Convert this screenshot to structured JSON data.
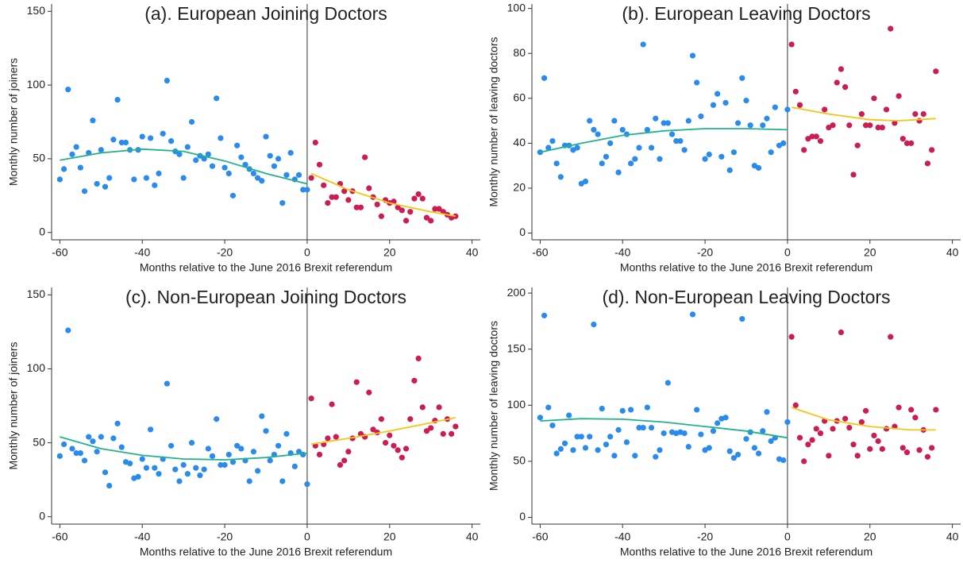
{
  "chart_data": [
    {
      "type": "scatter",
      "title": "(a). European Joining Doctors",
      "xlabel": "Months relative to the June 2016 Brexit referendum",
      "ylabel": "Monthly number of joiners",
      "xlim": [
        -62,
        42
      ],
      "ylim": [
        -5,
        155
      ],
      "xticks": [
        -60,
        -40,
        -20,
        0,
        20,
        40
      ],
      "yticks": [
        0,
        50,
        100,
        150
      ],
      "vline": 0,
      "series": [
        {
          "style": "points",
          "color": "#2a8bee",
          "x": [
            -60,
            -59,
            -58,
            -57,
            -56,
            -55,
            -54,
            -53,
            -52,
            -51,
            -50,
            -49,
            -48,
            -47,
            -46,
            -45,
            -44,
            -43,
            -42,
            -41,
            -40,
            -39,
            -38,
            -37,
            -36,
            -35,
            -34,
            -33,
            -32,
            -31,
            -30,
            -29,
            -28,
            -27,
            -26,
            -25,
            -24,
            -23,
            -22,
            -21,
            -20,
            -19,
            -18,
            -17,
            -16,
            -15,
            -14,
            -13,
            -12,
            -11,
            -10,
            -9,
            -8,
            -7,
            -6,
            -5,
            -4,
            -3,
            -2,
            -1,
            0
          ],
          "values": [
            36,
            43,
            97,
            53,
            58,
            44,
            28,
            54,
            76,
            33,
            56,
            31,
            37,
            63,
            90,
            61,
            61,
            56,
            36,
            56,
            65,
            37,
            64,
            32,
            40,
            67,
            103,
            62,
            55,
            53,
            37,
            58,
            75,
            49,
            52,
            50,
            53,
            45,
            91,
            64,
            44,
            40,
            25,
            59,
            51,
            46,
            43,
            40,
            37,
            35,
            65,
            52,
            45,
            50,
            20,
            39,
            54,
            36,
            39,
            29,
            29
          ]
        },
        {
          "style": "points",
          "color": "#cc1c52",
          "x": [
            1,
            2,
            3,
            4,
            5,
            6,
            7,
            8,
            9,
            10,
            11,
            12,
            13,
            14,
            15,
            16,
            17,
            18,
            19,
            20,
            21,
            22,
            23,
            24,
            25,
            26,
            27,
            28,
            29,
            30,
            31,
            32,
            33,
            34,
            35,
            36
          ],
          "values": [
            37,
            61,
            46,
            32,
            20,
            24,
            24,
            33,
            28,
            22,
            28,
            17,
            17,
            51,
            30,
            24,
            19,
            11,
            22,
            20,
            21,
            17,
            15,
            8,
            14,
            23,
            26,
            23,
            10,
            8,
            16,
            16,
            14,
            12,
            10,
            11
          ]
        },
        {
          "style": "line",
          "color": "#22b38a",
          "x": [
            -60,
            -50,
            -40,
            -30,
            -20,
            -10,
            0
          ],
          "values": [
            49,
            54,
            56.5,
            55,
            48.5,
            40,
            33
          ]
        },
        {
          "style": "line",
          "color": "#f5c518",
          "x": [
            1,
            10,
            20,
            30,
            36
          ],
          "values": [
            40,
            29,
            20,
            14,
            11
          ]
        }
      ]
    },
    {
      "type": "scatter",
      "title": "(b). European Leaving Doctors",
      "xlabel": "Months relative to the June 2016 Brexit referendum",
      "ylabel": "Monthly number of leaving doctors",
      "xlim": [
        -62,
        42
      ],
      "ylim": [
        -3,
        102
      ],
      "xticks": [
        -60,
        -40,
        -20,
        0,
        20,
        40
      ],
      "yticks": [
        0,
        20,
        40,
        60,
        80,
        100
      ],
      "vline": 0,
      "series": [
        {
          "style": "points",
          "color": "#2a8bee",
          "x": [
            -60,
            -59,
            -58,
            -57,
            -56,
            -55,
            -54,
            -53,
            -52,
            -51,
            -50,
            -49,
            -48,
            -47,
            -46,
            -45,
            -44,
            -43,
            -42,
            -41,
            -40,
            -39,
            -38,
            -37,
            -36,
            -35,
            -34,
            -33,
            -32,
            -31,
            -30,
            -29,
            -28,
            -27,
            -26,
            -25,
            -24,
            -23,
            -22,
            -21,
            -20,
            -19,
            -18,
            -17,
            -16,
            -15,
            -14,
            -13,
            -12,
            -11,
            -10,
            -9,
            -8,
            -7,
            -6,
            -5,
            -4,
            -3,
            -2,
            -1,
            0
          ],
          "values": [
            36,
            69,
            38,
            41,
            31,
            25,
            39,
            39,
            37,
            38,
            22,
            23,
            50,
            46,
            44,
            31,
            34,
            40,
            50,
            27,
            46,
            44,
            31,
            33,
            38,
            84,
            46,
            38,
            51,
            33,
            49,
            49,
            44,
            41,
            41,
            37,
            50,
            79,
            67,
            52,
            33,
            35,
            57,
            62,
            34,
            58,
            28,
            36,
            49,
            69,
            59,
            48,
            30,
            29,
            48,
            51,
            36,
            56,
            39,
            40,
            55
          ]
        },
        {
          "style": "points",
          "color": "#cc1c52",
          "x": [
            1,
            2,
            3,
            4,
            5,
            6,
            7,
            8,
            9,
            10,
            11,
            12,
            13,
            14,
            15,
            16,
            17,
            18,
            19,
            20,
            21,
            22,
            23,
            24,
            25,
            26,
            27,
            28,
            29,
            30,
            31,
            32,
            33,
            34,
            35,
            36
          ],
          "values": [
            84,
            63,
            57,
            37,
            42,
            43,
            43,
            41,
            55,
            47,
            48,
            67,
            73,
            65,
            48,
            26,
            39,
            53,
            48,
            48,
            60,
            47,
            47,
            55,
            91,
            49,
            61,
            42,
            40,
            40,
            53,
            50,
            53,
            31,
            37,
            72
          ]
        },
        {
          "style": "line",
          "color": "#22b38a",
          "x": [
            -60,
            -50,
            -40,
            -30,
            -20,
            -10,
            0
          ],
          "values": [
            36,
            40,
            43.5,
            45.5,
            46.5,
            46.5,
            46
          ]
        },
        {
          "style": "line",
          "color": "#f5c518",
          "x": [
            1,
            10,
            20,
            27,
            36
          ],
          "values": [
            56,
            53,
            50.5,
            50,
            51
          ]
        }
      ]
    },
    {
      "type": "scatter",
      "title": "(c). Non-European Joining Doctors",
      "xlabel": "Months relative to the June 2016 Brexit referendum",
      "ylabel": "Monthly number of joiners",
      "xlim": [
        -62,
        42
      ],
      "ylim": [
        -5,
        155
      ],
      "xticks": [
        -60,
        -40,
        -20,
        0,
        20,
        40
      ],
      "yticks": [
        0,
        50,
        100,
        150
      ],
      "vline": 0,
      "series": [
        {
          "style": "points",
          "color": "#2a8bee",
          "x": [
            -60,
            -59,
            -58,
            -57,
            -56,
            -55,
            -54,
            -53,
            -52,
            -51,
            -50,
            -49,
            -48,
            -47,
            -46,
            -45,
            -44,
            -43,
            -42,
            -41,
            -40,
            -39,
            -38,
            -37,
            -36,
            -35,
            -34,
            -33,
            -32,
            -31,
            -30,
            -29,
            -28,
            -27,
            -26,
            -25,
            -24,
            -23,
            -22,
            -21,
            -20,
            -19,
            -18,
            -17,
            -16,
            -15,
            -14,
            -13,
            -12,
            -11,
            -10,
            -9,
            -8,
            -7,
            -6,
            -5,
            -4,
            -3,
            -2,
            -1,
            0
          ],
          "values": [
            41,
            49,
            126,
            46,
            43,
            43,
            38,
            54,
            51,
            44,
            54,
            30,
            21,
            53,
            63,
            47,
            37,
            36,
            26,
            27,
            39,
            33,
            59,
            33,
            29,
            39,
            90,
            48,
            32,
            24,
            35,
            29,
            50,
            33,
            28,
            32,
            46,
            41,
            66,
            35,
            35,
            42,
            37,
            48,
            46,
            38,
            24,
            44,
            31,
            68,
            58,
            38,
            42,
            48,
            24,
            56,
            43,
            34,
            44,
            42,
            22
          ]
        },
        {
          "style": "points",
          "color": "#cc1c52",
          "x": [
            1,
            2,
            3,
            4,
            5,
            6,
            7,
            8,
            9,
            10,
            11,
            12,
            13,
            14,
            15,
            16,
            17,
            18,
            19,
            20,
            21,
            22,
            23,
            24,
            25,
            26,
            27,
            28,
            29,
            30,
            31,
            32,
            33,
            34,
            35,
            36
          ],
          "values": [
            80,
            48,
            42,
            49,
            53,
            76,
            54,
            35,
            38,
            44,
            53,
            91,
            56,
            54,
            84,
            59,
            57,
            66,
            50,
            55,
            48,
            45,
            40,
            46,
            66,
            92,
            107,
            74,
            58,
            60,
            65,
            74,
            56,
            66,
            56,
            61
          ]
        },
        {
          "style": "line",
          "color": "#22b38a",
          "x": [
            -60,
            -50,
            -40,
            -30,
            -20,
            -10,
            0
          ],
          "values": [
            54,
            46,
            41.5,
            39,
            38.5,
            40,
            43
          ]
        },
        {
          "style": "line",
          "color": "#f5c518",
          "x": [
            1,
            10,
            20,
            30,
            36
          ],
          "values": [
            49,
            53,
            58,
            63.5,
            67
          ]
        }
      ]
    },
    {
      "type": "scatter",
      "title": "(d). Non-European Leaving Doctors",
      "xlabel": "Months relative to the June 2016 Brexit referendum",
      "ylabel": "Monthly number of leaving doctors",
      "xlim": [
        -62,
        42
      ],
      "ylim": [
        -6,
        205
      ],
      "xticks": [
        -60,
        -40,
        -20,
        0,
        20,
        40
      ],
      "yticks": [
        0,
        50,
        100,
        150,
        200
      ],
      "vline": 0,
      "series": [
        {
          "style": "points",
          "color": "#2a8bee",
          "x": [
            -60,
            -59,
            -58,
            -57,
            -56,
            -55,
            -54,
            -53,
            -52,
            -51,
            -50,
            -49,
            -48,
            -47,
            -46,
            -45,
            -44,
            -43,
            -42,
            -41,
            -40,
            -39,
            -38,
            -37,
            -36,
            -35,
            -34,
            -33,
            -32,
            -31,
            -30,
            -29,
            -28,
            -27,
            -26,
            -25,
            -24,
            -23,
            -22,
            -21,
            -20,
            -19,
            -18,
            -17,
            -16,
            -15,
            -14,
            -13,
            -12,
            -11,
            -10,
            -9,
            -8,
            -7,
            -6,
            -5,
            -4,
            -3,
            -2,
            -1,
            0
          ],
          "values": [
            89,
            180,
            98,
            82,
            57,
            61,
            66,
            91,
            60,
            72,
            72,
            62,
            72,
            172,
            60,
            97,
            65,
            72,
            55,
            78,
            95,
            67,
            96,
            55,
            80,
            80,
            98,
            80,
            54,
            60,
            75,
            120,
            76,
            75,
            76,
            75,
            63,
            181,
            96,
            74,
            60,
            62,
            77,
            84,
            88,
            89,
            59,
            53,
            56,
            177,
            70,
            76,
            62,
            57,
            77,
            94,
            68,
            71,
            52,
            51,
            85
          ]
        },
        {
          "style": "points",
          "color": "#cc1c52",
          "x": [
            1,
            2,
            3,
            4,
            5,
            6,
            7,
            8,
            9,
            10,
            11,
            12,
            13,
            14,
            15,
            16,
            17,
            18,
            19,
            20,
            21,
            22,
            23,
            24,
            25,
            26,
            27,
            28,
            29,
            30,
            31,
            32,
            33,
            34,
            35,
            36
          ],
          "values": [
            161,
            100,
            71,
            50,
            65,
            69,
            79,
            75,
            86,
            55,
            79,
            86,
            165,
            88,
            80,
            65,
            55,
            85,
            95,
            61,
            73,
            68,
            61,
            79,
            161,
            81,
            98,
            62,
            58,
            96,
            89,
            60,
            78,
            54,
            62,
            96
          ]
        },
        {
          "style": "line",
          "color": "#22b38a",
          "x": [
            -60,
            -50,
            -40,
            -30,
            -20,
            -10,
            0
          ],
          "values": [
            86,
            88,
            87.5,
            85,
            81,
            77,
            71
          ]
        },
        {
          "style": "line",
          "color": "#f5c518",
          "x": [
            1,
            10,
            20,
            30,
            36
          ],
          "values": [
            98,
            87,
            81,
            78,
            78
          ]
        }
      ]
    }
  ]
}
